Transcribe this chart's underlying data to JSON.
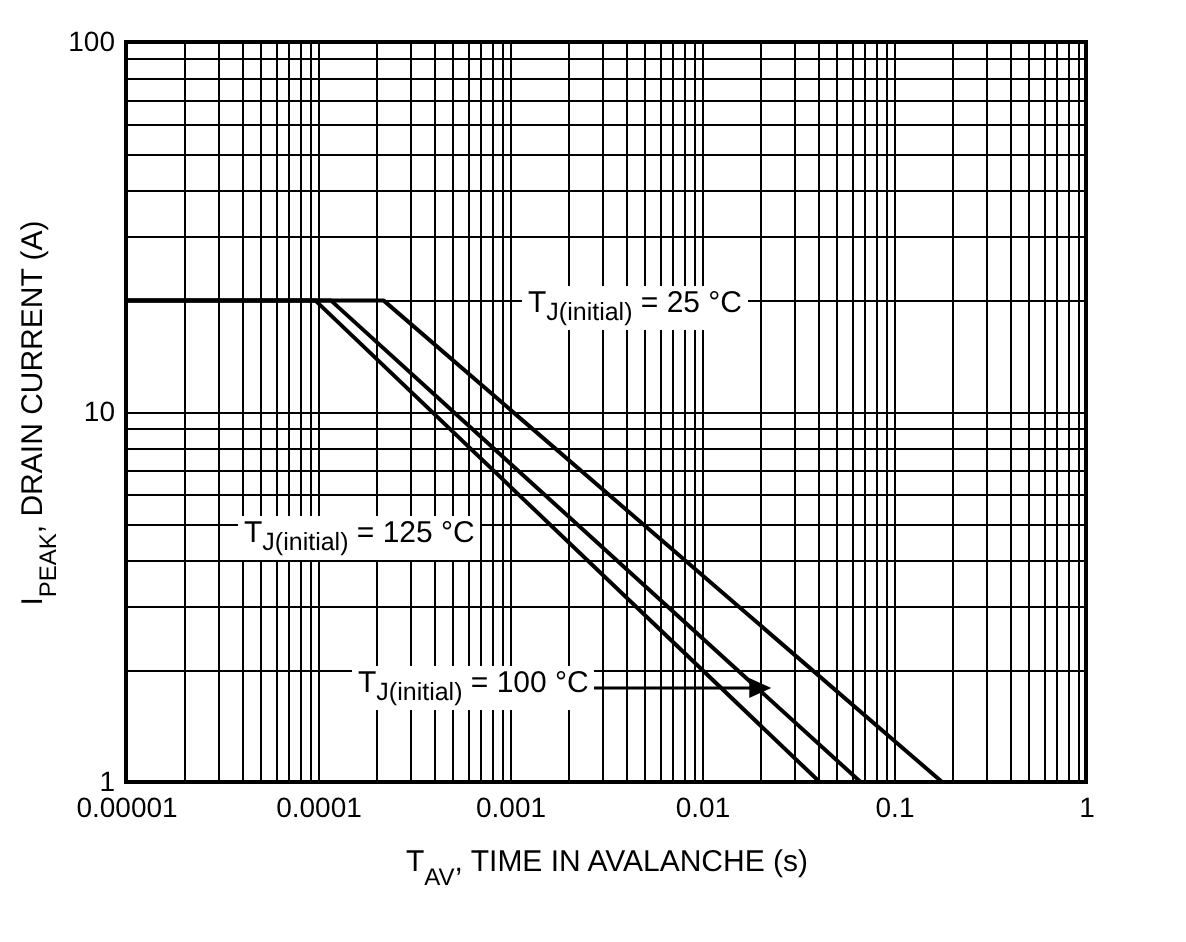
{
  "chart_data": {
    "type": "line",
    "xlabel": "T$_{AV}$, TIME IN AVALANCHE (s)",
    "ylabel": "I$_{PEAK}$, DRAIN CURRENT (A)",
    "log": "xy",
    "grid": true,
    "legend": false,
    "marker": "none",
    "line_style": "solid",
    "xlim": [
      1e-05,
      1
    ],
    "ylim": [
      1,
      100
    ],
    "xticks": [
      {
        "value": 1e-05,
        "label": "0.00001"
      },
      {
        "value": 2e-05,
        "label": null
      },
      {
        "value": 3e-05,
        "label": null
      },
      {
        "value": 4e-05,
        "label": null
      },
      {
        "value": 5e-05,
        "label": null
      },
      {
        "value": 6e-05,
        "label": null
      },
      {
        "value": 7e-05,
        "label": null
      },
      {
        "value": 8e-05,
        "label": null
      },
      {
        "value": 9e-05,
        "label": null
      },
      0.0001,
      {
        "value": 0.0002,
        "label": null
      },
      {
        "value": 0.0003,
        "label": null
      },
      {
        "value": 0.0004,
        "label": null
      },
      {
        "value": 0.0005,
        "label": null
      },
      {
        "value": 0.0006,
        "label": null
      },
      {
        "value": 0.0007,
        "label": null
      },
      {
        "value": 0.0008,
        "label": null
      },
      {
        "value": 0.0009,
        "label": null
      },
      0.001,
      {
        "value": 0.002,
        "label": null
      },
      {
        "value": 0.003,
        "label": null
      },
      {
        "value": 0.004,
        "label": null
      },
      {
        "value": 0.005,
        "label": null
      },
      {
        "value": 0.006,
        "label": null
      },
      {
        "value": 0.007,
        "label": null
      },
      {
        "value": 0.008,
        "label": null
      },
      {
        "value": 0.009,
        "label": null
      },
      0.01,
      {
        "value": 0.02,
        "label": null
      },
      {
        "value": 0.03,
        "label": null
      },
      {
        "value": 0.04,
        "label": null
      },
      {
        "value": 0.05,
        "label": null
      },
      {
        "value": 0.06,
        "label": null
      },
      {
        "value": 0.07,
        "label": null
      },
      {
        "value": 0.08,
        "label": null
      },
      {
        "value": 0.09,
        "label": null
      },
      0.1,
      {
        "value": 0.2,
        "label": null
      },
      {
        "value": 0.3,
        "label": null
      },
      {
        "value": 0.4,
        "label": null
      },
      {
        "value": 0.5,
        "label": null
      },
      {
        "value": 0.6,
        "label": null
      },
      {
        "value": 0.7,
        "label": null
      },
      {
        "value": 0.8,
        "label": null
      },
      {
        "value": 0.9,
        "label": null
      },
      1
    ],
    "yticks": [
      1,
      {
        "value": 2,
        "label": null
      },
      {
        "value": 3,
        "label": null
      },
      {
        "value": 4,
        "label": null
      },
      {
        "value": 5,
        "label": null
      },
      {
        "value": 6,
        "label": null
      },
      {
        "value": 7,
        "label": null
      },
      {
        "value": 8,
        "label": null
      },
      {
        "value": 9,
        "label": null
      },
      10,
      {
        "value": 20,
        "label": null
      },
      {
        "value": 30,
        "label": null
      },
      {
        "value": 40,
        "label": null
      },
      {
        "value": 50,
        "label": null
      },
      {
        "value": 60,
        "label": null
      },
      {
        "value": 70,
        "label": null
      },
      {
        "value": 80,
        "label": null
      },
      {
        "value": 90,
        "label": null
      },
      100
    ],
    "series": [
      {
        "color": "#000000",
        "x": [
          1e-05,
          9.7e-05,
          0.041
        ],
        "values": [
          20,
          20,
          1
        ]
      },
      {
        "color": "#000000",
        "x": [
          1e-05,
          0.000117,
          0.067
        ],
        "values": [
          20,
          20,
          1
        ]
      },
      {
        "color": "#000000",
        "x": [
          1e-05,
          0.00022,
          0.178
        ],
        "values": [
          20,
          20,
          1
        ]
      }
    ],
    "annotations": [
      "T$_{J(initial)}$ = 25 °C",
      "T$_{J(initial)}$ = 125 °C",
      "T$_{J(initial)}$ = 100 °C"
    ]
  }
}
